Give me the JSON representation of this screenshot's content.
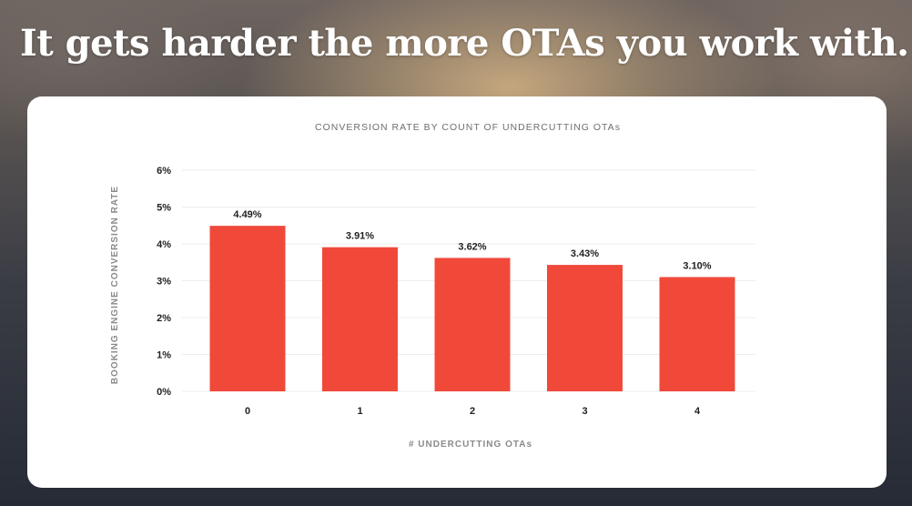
{
  "headline": "It gets harder the more OTAs you work with.",
  "chart_data": {
    "type": "bar",
    "title": "CONVERSION RATE BY COUNT OF UNDERCUTTING OTAs",
    "xlabel": "# UNDERCUTTING OTAs",
    "ylabel": "BOOKING ENGINE CONVERSION RATE",
    "categories": [
      "0",
      "1",
      "2",
      "3",
      "4"
    ],
    "values": [
      4.49,
      3.91,
      3.62,
      3.43,
      3.1
    ],
    "data_labels": [
      "4.49%",
      "3.91%",
      "3.62%",
      "3.43%",
      "3.10%"
    ],
    "yticks": [
      "0%",
      "1%",
      "2%",
      "3%",
      "4%",
      "5%",
      "6%"
    ],
    "ylim": [
      0,
      6
    ],
    "grid": true,
    "bar_color": "#f0493a"
  }
}
